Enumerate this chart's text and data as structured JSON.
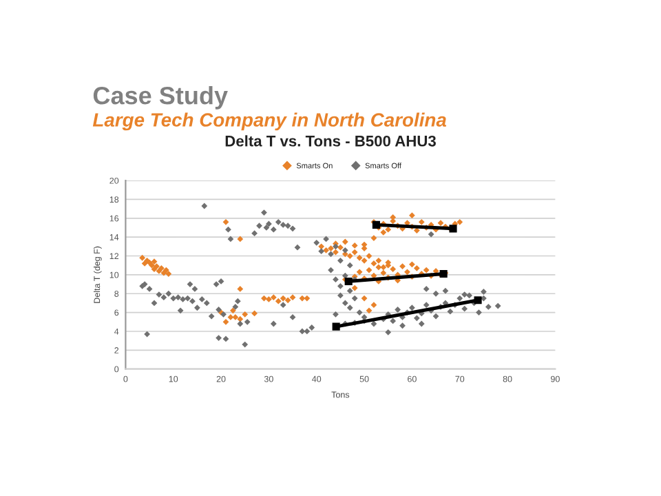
{
  "chart_data": {
    "type": "scatter",
    "title": "Delta T vs. Tons - B500 AHU3",
    "xlabel": "Tons",
    "ylabel": "Delta T (deg F)",
    "annotations": [
      "Case Study",
      "Large Tech Company in North Carolina"
    ],
    "xlim": [
      0,
      90
    ],
    "xticks": [
      0,
      10,
      20,
      30,
      40,
      50,
      60,
      70,
      80,
      90
    ],
    "ylim": [
      0,
      20
    ],
    "yticks": [
      0,
      2,
      4,
      6,
      8,
      10,
      12,
      14,
      16,
      18,
      20
    ],
    "grid": "y",
    "legend": "top",
    "marker": "diamond",
    "series": [
      {
        "name": "Smarts On",
        "color": "#e8822a",
        "x": [
          3.5,
          4,
          4.5,
          5,
          5.5,
          6,
          6,
          6.5,
          7,
          7.5,
          8,
          8.5,
          9,
          21,
          22,
          21,
          22.5,
          23,
          24,
          25,
          20,
          27,
          24,
          29,
          30,
          31,
          32,
          33,
          34,
          35,
          37,
          24,
          38,
          41,
          42,
          43,
          44,
          45,
          46,
          47,
          48,
          49,
          50,
          51,
          52,
          53,
          54,
          55,
          50,
          48,
          46,
          44,
          52,
          46,
          48,
          49,
          50,
          51,
          52,
          53,
          54,
          55,
          56,
          57,
          58,
          59,
          60,
          61,
          62,
          63,
          64,
          65,
          66,
          67,
          55,
          60,
          57,
          53,
          48,
          50,
          52,
          51,
          52,
          53,
          54,
          55,
          56,
          57,
          58,
          59,
          60,
          61,
          62,
          63,
          64,
          65,
          66,
          67,
          68,
          69,
          70,
          56,
          60,
          54,
          50
        ],
        "values": [
          11.8,
          11.2,
          11.5,
          11.3,
          11,
          11.4,
          10.6,
          10.9,
          10.4,
          10.7,
          10.2,
          10.5,
          10.1,
          15.6,
          5.5,
          5.0,
          6.2,
          5.5,
          5.3,
          5.8,
          6.0,
          5.9,
          8.5,
          7.5,
          7.4,
          7.6,
          7.2,
          7.5,
          7.3,
          7.6,
          7.5,
          13.8,
          7.5,
          13.0,
          12.6,
          12.8,
          12.4,
          12.9,
          12.2,
          12.0,
          12.4,
          11.8,
          11.5,
          12.0,
          11.2,
          11.5,
          10.8,
          11.3,
          12.8,
          13.1,
          13.5,
          13.3,
          13.9,
          9.5,
          9.8,
          10.3,
          9.6,
          10.5,
          9.9,
          10.8,
          10.2,
          9.7,
          10.6,
          10.0,
          10.9,
          10.3,
          9.8,
          10.7,
          10.1,
          10.5,
          9.9,
          10.4,
          10.0,
          10.2,
          11.0,
          11.1,
          9.4,
          9.3,
          8.6,
          7.5,
          6.8,
          6.2,
          15.6,
          15.0,
          15.4,
          14.8,
          15.7,
          15.2,
          14.9,
          15.5,
          15.1,
          14.7,
          15.6,
          15.0,
          15.3,
          14.8,
          15.5,
          15.1,
          14.9,
          15.4,
          15.6,
          16.1,
          16.3,
          14.5,
          13.2
        ]
      },
      {
        "name": "Smarts Off",
        "color": "#707070",
        "x": [
          3.5,
          4,
          4.5,
          5,
          6,
          7,
          8,
          9,
          10,
          11,
          11.5,
          12,
          13,
          13.5,
          14,
          14.5,
          15,
          16,
          16.5,
          17,
          18,
          19,
          19.5,
          19.5,
          20,
          20.5,
          21,
          21.5,
          22,
          23,
          23.5,
          24,
          25,
          25.5,
          27,
          28,
          29,
          29.5,
          30,
          31,
          32,
          33,
          34,
          35,
          36,
          35,
          31,
          33,
          37,
          38,
          39,
          40,
          41,
          42,
          43,
          44,
          45,
          46,
          47,
          44,
          45,
          46,
          47,
          48,
          45,
          46,
          47,
          48,
          49,
          50,
          43,
          44,
          46,
          48,
          50,
          52,
          54,
          55,
          56,
          57,
          58,
          59,
          60,
          61,
          62,
          63,
          64,
          65,
          66,
          67,
          68,
          69,
          70,
          71,
          72,
          73,
          75,
          76,
          78,
          55,
          58,
          62,
          63,
          65,
          67,
          71,
          74,
          75,
          64
        ],
        "values": [
          8.8,
          9.0,
          3.7,
          8.5,
          7.0,
          7.9,
          7.6,
          8.0,
          7.5,
          7.6,
          6.2,
          7.4,
          7.5,
          9.0,
          7.2,
          8.5,
          6.5,
          7.4,
          17.3,
          7.0,
          5.6,
          9.0,
          6.3,
          3.3,
          9.3,
          5.8,
          3.2,
          14.8,
          13.8,
          6.6,
          7.2,
          4.8,
          2.6,
          5.0,
          14.4,
          15.2,
          16.6,
          15.0,
          15.4,
          14.8,
          15.6,
          15.3,
          15.2,
          14.9,
          12.9,
          5.5,
          4.8,
          6.8,
          4.0,
          4.0,
          4.4,
          13.4,
          12.5,
          13.8,
          12.2,
          13.0,
          11.5,
          12.6,
          11.0,
          9.5,
          8.8,
          9.9,
          8.3,
          9.5,
          7.8,
          7.0,
          6.5,
          7.5,
          6.0,
          5.5,
          10.5,
          5.8,
          4.8,
          4.9,
          5.1,
          4.8,
          5.3,
          5.8,
          5.1,
          6.3,
          5.5,
          6.0,
          6.5,
          5.4,
          5.9,
          6.8,
          6.2,
          5.6,
          6.6,
          7.0,
          6.1,
          6.8,
          7.5,
          6.4,
          7.8,
          7.0,
          7.5,
          6.6,
          6.7,
          3.9,
          4.6,
          4.8,
          8.5,
          8.0,
          8.3,
          7.9,
          6.0,
          8.2,
          14.3
        ]
      },
      {
        "type": "line",
        "color": "#000000",
        "marker": "square",
        "x": [
          52.5,
          68.6
        ],
        "values": [
          15.3,
          14.9
        ]
      },
      {
        "type": "line",
        "color": "#000000",
        "marker": "square",
        "x": [
          46.7,
          66.6
        ],
        "values": [
          9.3,
          10.1
        ]
      },
      {
        "type": "line",
        "color": "#000000",
        "marker": "square",
        "x": [
          44.1,
          73.8
        ],
        "values": [
          4.5,
          7.3
        ]
      }
    ]
  }
}
